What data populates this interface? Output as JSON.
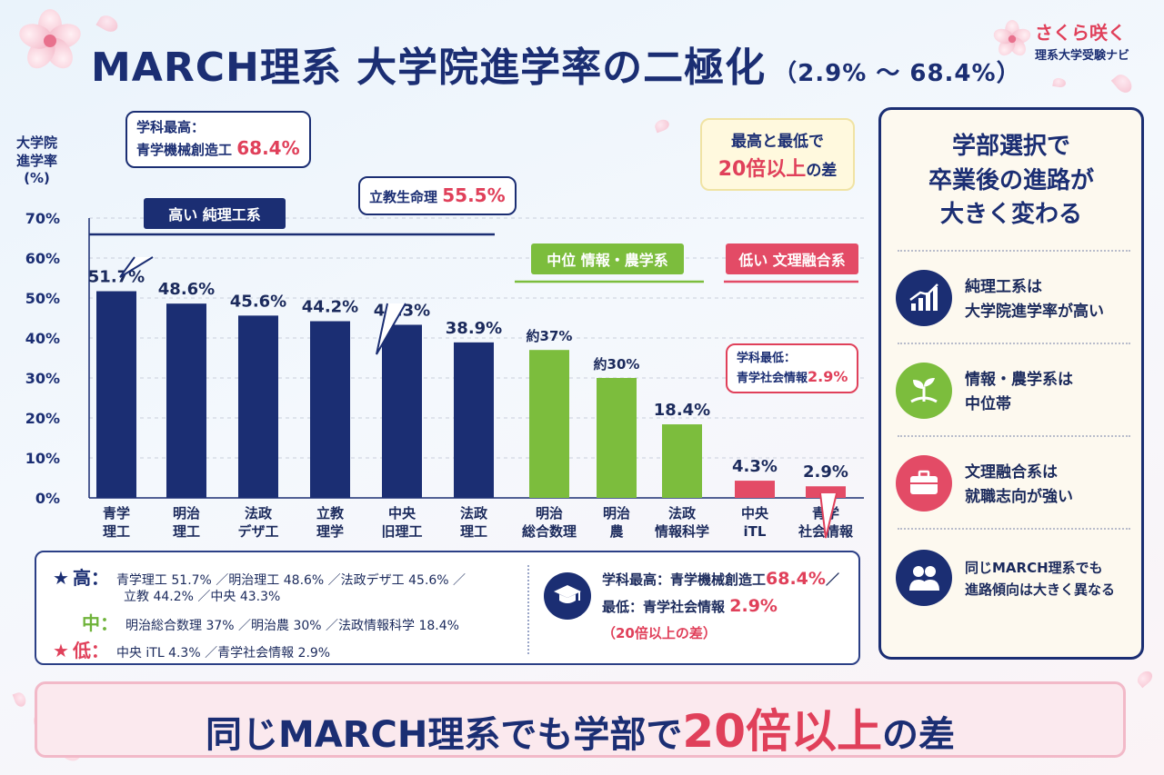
{
  "title": {
    "main": "MARCH理系 大学院進学率の二極化",
    "sub": "（2.9% ～ 68.4%）"
  },
  "logo": {
    "line1": "さくら咲く",
    "line2": "理系大学受験ナビ"
  },
  "ylabel": [
    "大学院",
    "進学率",
    "(%)"
  ],
  "callouts": {
    "top_label": "学科最高：",
    "top_name": "青学機械創造工",
    "top_value": "68.4%",
    "rikkyo_name": "立教生命理",
    "rikkyo_value": "55.5%",
    "low_label": "学科最低：",
    "low_name": "青学社会情報",
    "low_value": "2.9%"
  },
  "gap_box": {
    "line1": "最高と最低で",
    "big": "20倍以上",
    "suffix": "の差"
  },
  "bands": {
    "high": "高い 純理工系",
    "mid": "中位 情報・農学系",
    "low": "低い 文理融合系"
  },
  "colors": {
    "high": "#1b2e73",
    "mid": "#7cbd3d",
    "low": "#e34b66"
  },
  "chart_data": {
    "type": "bar",
    "ylim": [
      0,
      70
    ],
    "yticks": [
      "0%",
      "10%",
      "20%",
      "30%",
      "40%",
      "50%",
      "60%",
      "70%"
    ],
    "grid": true,
    "categories": [
      [
        "青学",
        "理工"
      ],
      [
        "明治",
        "理工"
      ],
      [
        "法政",
        "デザ工"
      ],
      [
        "立教",
        "理学"
      ],
      [
        "中央",
        "旧理工"
      ],
      [
        "法政",
        "理工"
      ],
      [
        "明治",
        "総合数理"
      ],
      [
        "明治",
        "農"
      ],
      [
        "法政",
        "情報科学"
      ],
      [
        "中央",
        "iTL"
      ],
      [
        "青学",
        "社会情報"
      ]
    ],
    "values": [
      51.7,
      48.6,
      45.6,
      44.2,
      43.3,
      38.9,
      37,
      30,
      18.4,
      4.3,
      2.9
    ],
    "labels": [
      "51.7%",
      "48.6%",
      "45.6%",
      "44.2%",
      "43.3%",
      "38.9%",
      "約37%",
      "約30%",
      "18.4%",
      "4.3%",
      "2.9%"
    ],
    "tiers": [
      "high",
      "high",
      "high",
      "high",
      "high",
      "high",
      "mid",
      "mid",
      "mid",
      "low",
      "low"
    ]
  },
  "legend": {
    "high_star": "★",
    "high_tier": "高：",
    "high_line1": "青学理工 51.7% ／明治理工 48.6% ／法政デザ工 45.6% ／",
    "high_line2": "立教 44.2% ／中央 43.3%",
    "mid_tier": "中：",
    "mid_line": "明治総合数理 37% ／明治農 30% ／法政情報科学 18.4%",
    "low_star": "★",
    "low_tier": "低：",
    "low_line": "中央 iTL 4.3% ／青学社会情報 2.9%",
    "right_line1_label": "学科最高：青学機械創造工",
    "right_line1_value": "68.4%",
    "right_line1_slash": "／",
    "right_line2_label": "最低：青学社会情報",
    "right_line2_value": "2.9%",
    "right_line3": "（20倍以上の差）"
  },
  "panel": {
    "head": [
      "学部選択で",
      "卒業後の進路が",
      "大きく変わる"
    ],
    "items": [
      {
        "icon": "chart-up-icon",
        "lines": [
          "純理工系は",
          "大学院進学率が高い"
        ]
      },
      {
        "icon": "sprout-icon",
        "lines": [
          "情報・農学系は",
          "中位帯"
        ]
      },
      {
        "icon": "briefcase-icon",
        "lines": [
          "文理融合系は",
          "就職志向が強い"
        ]
      },
      {
        "icon": "people-icon",
        "lines": [
          "同じMARCH理系でも",
          "進路傾向は大きく異なる"
        ]
      }
    ]
  },
  "banner": {
    "part1": "同じMARCH理系でも学部で",
    "part2": "20倍以上",
    "part3": "の差"
  }
}
